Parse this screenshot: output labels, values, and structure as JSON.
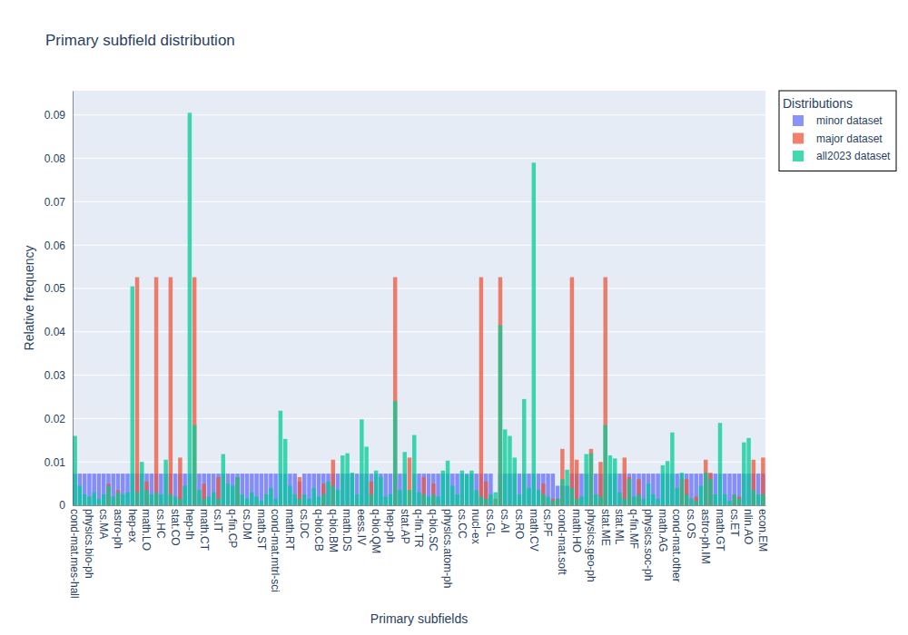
{
  "chart_data": {
    "type": "bar",
    "title": "Primary subfield distribution",
    "x_label": "Primary subfields",
    "y_label": "Relative frequency",
    "legend_title": "Distributions",
    "legend": "right",
    "grid": true,
    "ylim": [
      0,
      0.0956
    ],
    "yticks": [
      0,
      0.01,
      0.02,
      0.03,
      0.04,
      0.05,
      0.06,
      0.07,
      0.08,
      0.09
    ],
    "categories": [
      "cond-mat.mes-hall",
      null,
      null,
      "physics.bio-ph",
      null,
      null,
      "cs.MA",
      null,
      null,
      "astro-ph",
      null,
      null,
      "hep-ex",
      null,
      null,
      "math.LO",
      null,
      null,
      "cs.HC",
      null,
      null,
      "stat.CO",
      null,
      null,
      "hep-th",
      null,
      null,
      "math.CT",
      null,
      null,
      "cs.IT",
      null,
      null,
      "q-fin.CP",
      null,
      null,
      "cs.DM",
      null,
      null,
      "math.ST",
      null,
      null,
      "cond-mat.mtrl-sci",
      null,
      null,
      "math.RT",
      null,
      null,
      "cs.DC",
      null,
      null,
      "q-bio.CB",
      null,
      null,
      "q-bio.BM",
      null,
      null,
      "math.DS",
      null,
      null,
      "eess.IV",
      null,
      null,
      "q-bio.QM",
      null,
      null,
      "hep-ph",
      null,
      null,
      "stat.AP",
      null,
      null,
      "q-fin.TR",
      null,
      null,
      "q-bio.SC",
      null,
      null,
      "physics.atom-ph",
      null,
      null,
      "cs.CC",
      null,
      null,
      "nucl-ex",
      null,
      null,
      "cs.GL",
      null,
      null,
      "cs.AI",
      null,
      null,
      "cs.RO",
      null,
      null,
      "math.CV",
      null,
      null,
      "cs.PF",
      null,
      null,
      "cond-mat.soft",
      null,
      null,
      "math.HO",
      null,
      null,
      "physics.geo-ph",
      null,
      null,
      "stat.ME",
      null,
      null,
      "stat.ML",
      null,
      null,
      "q-fin.MF",
      null,
      null,
      "physics.soc-ph",
      null,
      null,
      "math.AG",
      null,
      null,
      "cond-mat.other",
      null,
      null,
      "cs.OS",
      null,
      null,
      "astro-ph.IM",
      null,
      null,
      "math.GT",
      null,
      null,
      "cs.ET",
      null,
      null,
      "nlin.AO",
      null,
      null,
      "econ.EM"
    ],
    "series": [
      {
        "name": "minor dataset",
        "color": "#636efa",
        "values": [
          0.0073,
          0.0073,
          0.0073,
          0.0073,
          0.0073,
          0.0073,
          0.0073,
          0.0073,
          0.0073,
          0.0073,
          0.0073,
          0.0073,
          0.0073,
          0.0073,
          0.0073,
          0.0073,
          0.0073,
          0.0073,
          0.0073,
          0.0073,
          0.0073,
          0.0073,
          0.0073,
          0.0073,
          0.0073,
          0.0073,
          0.0073,
          0.0073,
          0.0073,
          0.0073,
          0.0073,
          0.0073,
          0.0073,
          0.0073,
          0.0073,
          0.0073,
          0.0073,
          0.0073,
          0.0073,
          0.0073,
          0.0073,
          0.0073,
          0.0073,
          0.0073,
          0.0073,
          0.0073,
          0.0073,
          0.0055,
          0.0073,
          0.0073,
          0.0073,
          0.0073,
          0.0073,
          0.0073,
          0.0073,
          0.0073,
          0.0073,
          0.0073,
          0.0073,
          0.0073,
          0.0073,
          0.0073,
          0.0073,
          0.0073,
          0.0073,
          0.0073,
          0.0073,
          0.0073,
          0.0073,
          0.0073,
          0,
          0.0073,
          0.0073,
          0.0073,
          0.0073,
          0.0073,
          0.0073,
          0.0073,
          0.0073,
          0.0073,
          0.0073,
          0.0073,
          0.0073,
          0.0073,
          0.0073,
          0.0073,
          0.0073,
          0.0073,
          0,
          0.0073,
          0.0073,
          0.0073,
          0.0073,
          0.0073,
          0.0073,
          0.0073,
          0.0073,
          0.0073,
          0.0073,
          0.0073,
          0.0073,
          0.0045,
          0.0045,
          0.0045,
          0.0073,
          0.0073,
          0.0073,
          0.0073,
          0.0073,
          0.0073,
          0.0073,
          0.0073,
          0.0073,
          0.0073,
          0.0073,
          0.0073,
          0.0073,
          0.0073,
          0.0073,
          0.0073,
          0.0073,
          0.0073,
          0.0073,
          0.0073,
          0.0073,
          0.0073,
          0.0073,
          0.0073,
          0.0073,
          0.0073,
          0.0073,
          0.0073,
          0.0073,
          0.0073,
          0.0073,
          0.0073,
          0.0073,
          0.0073,
          0.0073,
          0.0073,
          0.0073,
          0.0073,
          0.0073,
          0.0073,
          0.0073
        ]
      },
      {
        "name": "major dataset",
        "color": "#ef553b",
        "values": [
          0,
          0,
          0,
          0,
          0,
          0,
          0,
          0.005,
          0,
          0.0035,
          0,
          0,
          0,
          0.0526,
          0,
          0.0055,
          0,
          0.0526,
          0,
          0,
          0.0526,
          0,
          0.011,
          0,
          0,
          0.0526,
          0,
          0.005,
          0,
          0,
          0.0065,
          0,
          0,
          0,
          0.0065,
          0,
          0,
          0,
          0,
          0,
          0,
          0,
          0,
          0,
          0,
          0,
          0,
          0.0065,
          0,
          0,
          0,
          0,
          0.005,
          0,
          0.0105,
          0,
          0,
          0,
          0,
          0,
          0,
          0,
          0.0055,
          0,
          0,
          0,
          0,
          0.0526,
          0,
          0,
          0.011,
          0,
          0,
          0.0065,
          0,
          0.005,
          0,
          0,
          0,
          0,
          0,
          0,
          0,
          0,
          0,
          0.0526,
          0.0055,
          0,
          0.0015,
          0.0526,
          0,
          0,
          0,
          0,
          0,
          0,
          0,
          0,
          0.005,
          0,
          0.0015,
          0.0015,
          0.013,
          0,
          0.0526,
          0.0105,
          0,
          0,
          0.013,
          0,
          0.01,
          0.0526,
          0,
          0,
          0,
          0.011,
          0.0065,
          0,
          0.006,
          0,
          0,
          0,
          0,
          0,
          0,
          0,
          0,
          0.006,
          0.006,
          0,
          0.002,
          0,
          0.0105,
          0.0075,
          0,
          0,
          0,
          0,
          0.0025,
          0.002,
          0,
          0,
          0.0105,
          0,
          0.011
        ]
      },
      {
        "name": "all2023 dataset",
        "color": "#00cc96",
        "values": [
          0.016,
          0.0045,
          0.0025,
          0.002,
          0.003,
          0.0015,
          0.0025,
          0.0045,
          0.002,
          0.003,
          0.0025,
          0.003,
          0.0505,
          0.003,
          0.01,
          0.0035,
          0.0025,
          0.003,
          0.0025,
          0.0105,
          0.0025,
          0.002,
          0.0015,
          0.0045,
          0.0905,
          0.0185,
          0.0035,
          0.0015,
          0.002,
          0.003,
          0.0015,
          0.0118,
          0.005,
          0.0045,
          0.0065,
          0.0025,
          0.0015,
          0.003,
          0.002,
          0.001,
          0.0025,
          0.004,
          0.0015,
          0.0218,
          0.0153,
          0.0045,
          0.0025,
          0.0015,
          0.0025,
          0.0015,
          0.004,
          0.002,
          0.0025,
          0.0055,
          0.0045,
          0.0035,
          0.0115,
          0.012,
          0.0075,
          0.0025,
          0.0198,
          0.0135,
          0.0025,
          0.008,
          0.0065,
          0.002,
          0.0025,
          0.024,
          0.0035,
          0.0123,
          0.0035,
          0.0162,
          0.003,
          0.0025,
          0.002,
          0.0025,
          0.002,
          0.008,
          0.0103,
          0.0045,
          0.0025,
          0.008,
          0.007,
          0.008,
          0.0035,
          0.002,
          0.0015,
          0.0025,
          0.003,
          0.0415,
          0.0175,
          0.016,
          0.011,
          0.0025,
          0.0245,
          0.004,
          0.079,
          0.0035,
          0.0025,
          0.002,
          0.001,
          0.0015,
          0.006,
          0.0082,
          0.004,
          0.0015,
          0.002,
          0.0118,
          0.012,
          0.0025,
          0.002,
          0.0185,
          0.0115,
          0.0108,
          0.003,
          0.0015,
          0.006,
          0.002,
          0.0025,
          0.0015,
          0.005,
          0.0025,
          0.0015,
          0.0092,
          0.0102,
          0.0168,
          0.004,
          0.0075,
          0.0025,
          0.0015,
          0.001,
          0.0045,
          0.0075,
          0.006,
          0.0025,
          0.019,
          0.0025,
          0.001,
          0.0025,
          0.0015,
          0.0145,
          0.0155,
          0.0035,
          0.0025,
          0.0025
        ]
      }
    ]
  }
}
